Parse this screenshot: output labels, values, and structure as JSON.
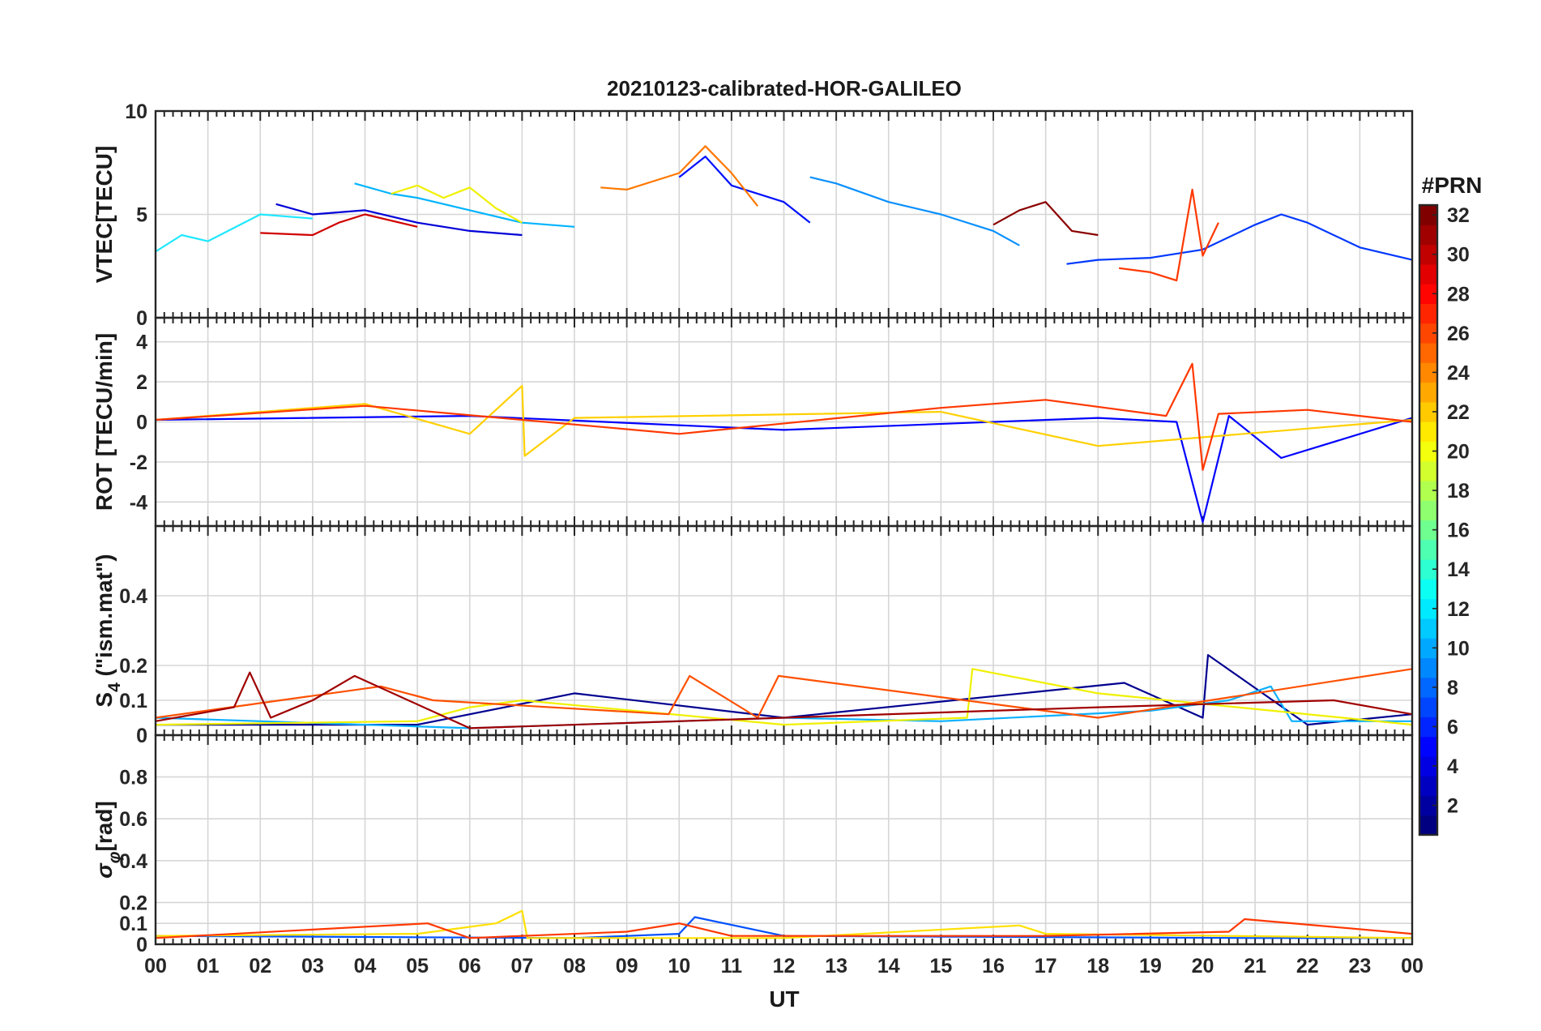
{
  "chart_data": {
    "type": "line",
    "title": "20210123-calibrated-HOR-GALILEO",
    "xlabel": "UT",
    "x_ticks": [
      "00",
      "01",
      "02",
      "03",
      "04",
      "05",
      "06",
      "07",
      "08",
      "09",
      "10",
      "11",
      "12",
      "13",
      "14",
      "15",
      "16",
      "17",
      "18",
      "19",
      "20",
      "21",
      "22",
      "23",
      "00"
    ],
    "x_range_hours": [
      0,
      24
    ],
    "colorbar": {
      "title": "#PRN",
      "range": [
        1,
        32
      ],
      "ticks": [
        "2",
        "4",
        "6",
        "8",
        "10",
        "12",
        "14",
        "16",
        "18",
        "20",
        "22",
        "24",
        "26",
        "28",
        "30",
        "32"
      ],
      "colormap": "jet"
    },
    "panels": [
      {
        "id": "vtec",
        "ylabel": "VTEC[TECU]",
        "ylim": [
          0,
          10
        ],
        "y_ticks": [
          "0",
          "5",
          "10"
        ],
        "y_tick_values": [
          0,
          5,
          10
        ],
        "series": [
          {
            "prn": 2,
            "color": "#0000d8",
            "x": [
              2.3,
              3,
              4,
              5,
              6,
              7
            ],
            "y": [
              5.5,
              5.0,
              5.2,
              4.6,
              4.2,
              4.0
            ]
          },
          {
            "prn": 4,
            "color": "#0010ff",
            "x": [
              10,
              10.5,
              11,
              12,
              12.5
            ],
            "y": [
              6.8,
              7.8,
              6.4,
              5.6,
              4.6
            ]
          },
          {
            "prn": 5,
            "color": "#0038ff",
            "x": [
              17.4,
              18,
              19,
              20,
              21,
              21.5,
              22,
              23,
              24
            ],
            "y": [
              2.6,
              2.8,
              2.9,
              3.3,
              4.5,
              5.0,
              4.6,
              3.4,
              2.8
            ]
          },
          {
            "prn": 10,
            "color": "#0a90ff",
            "x": [
              12.5,
              13,
              14,
              15,
              16,
              16.5
            ],
            "y": [
              6.8,
              6.5,
              5.6,
              5.0,
              4.2,
              3.5
            ]
          },
          {
            "prn": 12,
            "color": "#00b4ff",
            "x": [
              3.8,
              4.5,
              5,
              6,
              7,
              8
            ],
            "y": [
              6.5,
              6.0,
              5.8,
              5.2,
              4.6,
              4.4
            ]
          },
          {
            "prn": 14,
            "color": "#20e8ff",
            "x": [
              0,
              0.5,
              1,
              2,
              3
            ],
            "y": [
              3.2,
              4.0,
              3.7,
              5.0,
              4.8
            ]
          },
          {
            "prn": 20,
            "color": "#f0f000",
            "x": [
              4.5,
              5,
              5.5,
              6,
              6.5,
              7
            ],
            "y": [
              6.0,
              6.4,
              5.8,
              6.3,
              5.3,
              4.6
            ]
          },
          {
            "prn": 24,
            "color": "#ff7800",
            "x": [
              8.5,
              9,
              10,
              10.5,
              11,
              11.5
            ],
            "y": [
              6.3,
              6.2,
              7.0,
              8.3,
              7.0,
              5.4
            ]
          },
          {
            "prn": 27,
            "color": "#ff3800",
            "x": [
              18.4,
              19,
              19.5,
              19.8,
              20,
              20.3
            ],
            "y": [
              2.4,
              2.2,
              1.8,
              6.2,
              3.0,
              4.6
            ]
          },
          {
            "prn": 30,
            "color": "#d00000",
            "x": [
              2,
              3,
              3.5,
              4,
              5
            ],
            "y": [
              4.1,
              4.0,
              4.6,
              5.0,
              4.4
            ]
          },
          {
            "prn": 32,
            "color": "#8a0000",
            "x": [
              16,
              16.5,
              17,
              17.5,
              18
            ],
            "y": [
              4.5,
              5.2,
              5.6,
              4.2,
              4.0
            ]
          }
        ]
      },
      {
        "id": "rot",
        "ylabel": "ROT [TECU/min]",
        "ylim": [
          -5.2,
          5.2
        ],
        "y_ticks": [
          "-4",
          "-2",
          "0",
          "2",
          "4"
        ],
        "y_tick_values": [
          -4,
          -2,
          0,
          2,
          4
        ],
        "series": [
          {
            "prn": 3,
            "color": "#0000ff",
            "x": [
              0,
              6,
              12,
              18,
              19.5,
              20,
              20.5,
              21.5,
              24
            ],
            "y": [
              0.1,
              0.3,
              -0.4,
              0.2,
              0.0,
              -5.0,
              0.3,
              -1.8,
              0.2
            ]
          },
          {
            "prn": 21,
            "color": "#ffd000",
            "x": [
              0,
              4,
              6,
              7,
              7.05,
              8,
              15,
              18,
              24
            ],
            "y": [
              0.1,
              0.9,
              -0.6,
              1.8,
              -1.7,
              0.2,
              0.5,
              -1.2,
              0.1
            ]
          },
          {
            "prn": 27,
            "color": "#ff3800",
            "x": [
              0,
              4,
              10,
              15,
              17,
              19.3,
              19.8,
              20,
              20.3,
              22,
              24
            ],
            "y": [
              0.1,
              0.8,
              -0.6,
              0.7,
              1.1,
              0.3,
              2.9,
              -2.4,
              0.4,
              0.6,
              0.0
            ]
          }
        ]
      },
      {
        "id": "s4",
        "ylabel": "S4 (\"ism.mat\")",
        "ylabel_main": "S",
        "ylabel_sub": "4",
        "ylabel_rest": "  (\"ism.mat\")",
        "ylim": [
          0,
          0.6
        ],
        "y_ticks": [
          "0",
          "0.1",
          "0.2",
          "0.4"
        ],
        "y_tick_values": [
          0,
          0.1,
          0.2,
          0.4
        ],
        "series": [
          {
            "prn": 1,
            "color": "#000090",
            "x": [
              0,
              5,
              8,
              12,
              18.5,
              20,
              20.1,
              22,
              24
            ],
            "y": [
              0.03,
              0.03,
              0.12,
              0.05,
              0.15,
              0.05,
              0.23,
              0.03,
              0.06
            ]
          },
          {
            "prn": 11,
            "color": "#0cb0ff",
            "x": [
              0,
              6,
              12,
              15,
              19,
              20.5,
              21.3,
              21.7,
              24
            ],
            "y": [
              0.05,
              0.02,
              0.05,
              0.04,
              0.07,
              0.1,
              0.14,
              0.04,
              0.04
            ]
          },
          {
            "prn": 20,
            "color": "#f0f000",
            "x": [
              0,
              5,
              6,
              7,
              12,
              15.5,
              15.6,
              18,
              24
            ],
            "y": [
              0.03,
              0.04,
              0.08,
              0.1,
              0.03,
              0.05,
              0.19,
              0.12,
              0.03
            ]
          },
          {
            "prn": 25,
            "color": "#ff5000",
            "x": [
              0,
              4.3,
              5.3,
              9.8,
              10.2,
              11.5,
              11.9,
              18,
              24
            ],
            "y": [
              0.05,
              0.14,
              0.1,
              0.06,
              0.17,
              0.05,
              0.17,
              0.05,
              0.19
            ]
          },
          {
            "prn": 31,
            "color": "#a00000",
            "x": [
              0,
              1.5,
              1.8,
              2.2,
              3,
              3.8,
              6,
              18,
              22.5,
              24
            ],
            "y": [
              0.04,
              0.08,
              0.18,
              0.05,
              0.1,
              0.17,
              0.02,
              0.08,
              0.1,
              0.06
            ]
          }
        ]
      },
      {
        "id": "sigma",
        "ylabel": "σφ[rad]",
        "ylabel_main": "σ",
        "ylabel_sub": "φ",
        "ylabel_rest": "[rad]",
        "ylim": [
          0,
          1
        ],
        "y_ticks": [
          "0",
          "0.1",
          "0.2",
          "0.4",
          "0.6",
          "0.8"
        ],
        "y_tick_values": [
          0,
          0.1,
          0.2,
          0.4,
          0.6,
          0.8
        ],
        "series": [
          {
            "prn": 6,
            "color": "#0050ff",
            "x": [
              0,
              8,
              10,
              10.3,
              12,
              21,
              24
            ],
            "y": [
              0.04,
              0.03,
              0.05,
              0.13,
              0.04,
              0.03,
              0.03
            ]
          },
          {
            "prn": 19,
            "color": "#ffe000",
            "x": [
              0,
              5,
              6.5,
              7,
              7.1,
              12,
              16.5,
              17,
              24
            ],
            "y": [
              0.04,
              0.05,
              0.1,
              0.16,
              0.03,
              0.03,
              0.09,
              0.05,
              0.03
            ]
          },
          {
            "prn": 27,
            "color": "#ff3800",
            "x": [
              0,
              5.2,
              6,
              9,
              10,
              11,
              17,
              20.5,
              20.8,
              24
            ],
            "y": [
              0.03,
              0.1,
              0.03,
              0.06,
              0.1,
              0.04,
              0.04,
              0.06,
              0.12,
              0.05
            ]
          }
        ]
      }
    ]
  }
}
